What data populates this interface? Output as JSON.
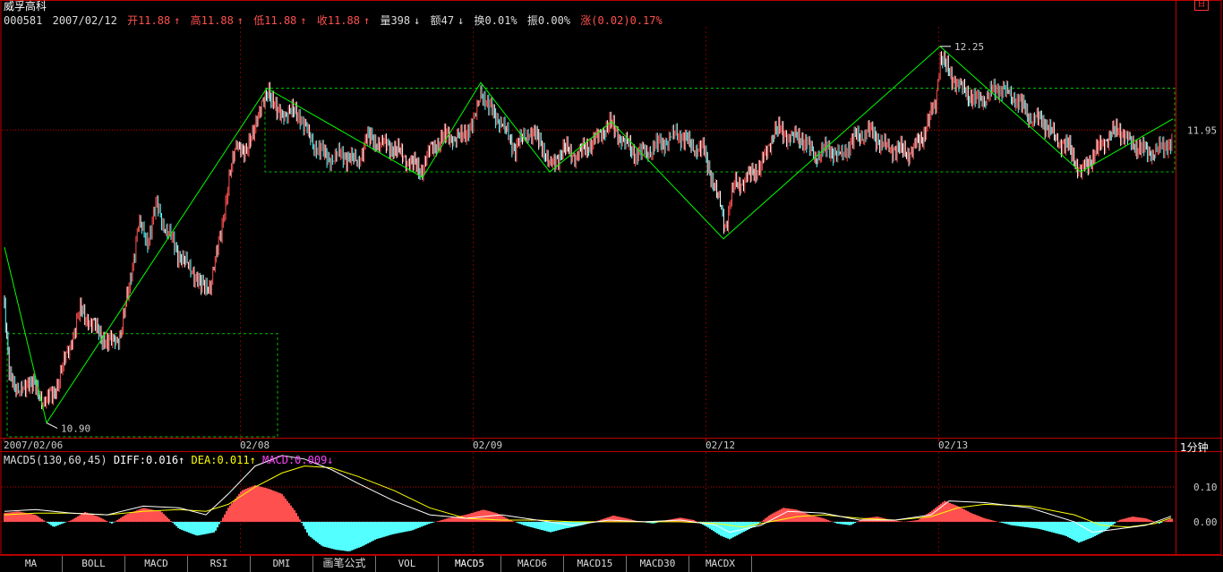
{
  "header": {
    "name": "威孚高科",
    "code": "000581",
    "date": "2007/02/12",
    "open_label": "开11.88",
    "high_label": "高11.88",
    "low_label": "低11.88",
    "close_label": "收11.88",
    "vol_label": "量398",
    "amt_label": "额47",
    "turnover_label": "换0.01%",
    "amplitude_label": "振0.00%",
    "change_label": "涨(0.02)0.17%"
  },
  "period_label": "1分钟",
  "top_button": "日",
  "macd_header": {
    "name": "MACD5(130,60,45)",
    "diff": "DIFF:0.016",
    "dea": "DEA:0.011",
    "macd": "MACD:0.009"
  },
  "tabs": [
    "MA",
    "BOLL",
    "MACD",
    "RSI",
    "DMI",
    "画笔公式",
    "VOL",
    "MACD5",
    "MACD6",
    "MACD15",
    "MACD30",
    "MACDX"
  ],
  "selected_tab": "MACD5",
  "colors": {
    "background": "#000000",
    "frame": "#c00000",
    "up": "#ff5050",
    "down": "#54ffff",
    "zigzag": "#00ff00",
    "box": "#00c000",
    "diff": "#ffffff",
    "dea": "#ffff00",
    "hline": "#c00000"
  },
  "chart_data": {
    "type": "line",
    "title": "威孚高科 1分钟",
    "x_ticks": [
      "2007/02/06",
      "02/08",
      "02/09",
      "02/12",
      "02/13"
    ],
    "price_labels": [
      "11.95"
    ],
    "ylim": [
      10.85,
      12.32
    ],
    "price_series": [
      [
        0,
        11.5
      ],
      [
        10,
        11.1
      ],
      [
        20,
        11.0
      ],
      [
        30,
        11.05
      ],
      [
        40,
        11.02
      ],
      [
        50,
        10.98
      ],
      [
        60,
        11.0
      ],
      [
        75,
        11.15
      ],
      [
        90,
        11.3
      ],
      [
        105,
        11.25
      ],
      [
        120,
        11.18
      ],
      [
        135,
        11.22
      ],
      [
        145,
        11.4
      ],
      [
        155,
        11.62
      ],
      [
        165,
        11.55
      ],
      [
        175,
        11.68
      ],
      [
        185,
        11.6
      ],
      [
        200,
        11.5
      ],
      [
        215,
        11.45
      ],
      [
        225,
        11.38
      ],
      [
        235,
        11.4
      ],
      [
        245,
        11.55
      ],
      [
        255,
        11.75
      ],
      [
        265,
        11.92
      ],
      [
        275,
        11.85
      ],
      [
        285,
        11.98
      ],
      [
        295,
        12.05
      ],
      [
        300,
        12.1
      ],
      [
        310,
        12.0
      ],
      [
        320,
        12.02
      ],
      [
        335,
        12.0
      ],
      [
        350,
        11.9
      ],
      [
        365,
        11.85
      ],
      [
        380,
        11.86
      ],
      [
        400,
        11.84
      ],
      [
        410,
        11.92
      ],
      [
        430,
        11.9
      ],
      [
        450,
        11.86
      ],
      [
        470,
        11.8
      ],
      [
        480,
        11.88
      ],
      [
        500,
        11.93
      ],
      [
        515,
        11.92
      ],
      [
        530,
        11.98
      ],
      [
        537,
        12.1
      ],
      [
        545,
        12.03
      ],
      [
        560,
        11.98
      ],
      [
        575,
        11.88
      ],
      [
        590,
        11.95
      ],
      [
        605,
        11.9
      ],
      [
        615,
        11.82
      ],
      [
        630,
        11.88
      ],
      [
        645,
        11.86
      ],
      [
        660,
        11.9
      ],
      [
        680,
        11.97
      ],
      [
        695,
        11.92
      ],
      [
        710,
        11.86
      ],
      [
        725,
        11.88
      ],
      [
        740,
        11.9
      ],
      [
        755,
        11.94
      ],
      [
        770,
        11.9
      ],
      [
        785,
        11.88
      ],
      [
        795,
        11.78
      ],
      [
        805,
        11.68
      ],
      [
        810,
        11.6
      ],
      [
        820,
        11.75
      ],
      [
        835,
        11.78
      ],
      [
        850,
        11.82
      ],
      [
        865,
        11.95
      ],
      [
        880,
        11.93
      ],
      [
        895,
        11.92
      ],
      [
        910,
        11.86
      ],
      [
        925,
        11.88
      ],
      [
        940,
        11.86
      ],
      [
        955,
        11.92
      ],
      [
        970,
        11.95
      ],
      [
        985,
        11.9
      ],
      [
        1000,
        11.88
      ],
      [
        1015,
        11.87
      ],
      [
        1030,
        11.92
      ],
      [
        1045,
        12.05
      ],
      [
        1050,
        12.22
      ],
      [
        1060,
        12.15
      ],
      [
        1075,
        12.1
      ],
      [
        1090,
        12.05
      ],
      [
        1105,
        12.08
      ],
      [
        1120,
        12.1
      ],
      [
        1135,
        12.06
      ],
      [
        1150,
        12.0
      ],
      [
        1165,
        11.98
      ],
      [
        1180,
        11.92
      ],
      [
        1195,
        11.88
      ],
      [
        1207,
        11.8
      ],
      [
        1220,
        11.85
      ],
      [
        1235,
        11.92
      ],
      [
        1250,
        11.95
      ],
      [
        1265,
        11.9
      ],
      [
        1280,
        11.87
      ],
      [
        1295,
        11.88
      ],
      [
        1305,
        11.9
      ]
    ],
    "zigzag": [
      {
        "x": 5,
        "price": 11.53
      },
      {
        "x": 52,
        "price": 10.9,
        "label": "10.90"
      },
      {
        "x": 298,
        "price": 12.1
      },
      {
        "x": 472,
        "price": 11.78
      },
      {
        "x": 537,
        "price": 12.12
      },
      {
        "x": 614,
        "price": 11.8
      },
      {
        "x": 683,
        "price": 11.98
      },
      {
        "x": 808,
        "price": 11.56
      },
      {
        "x": 1050,
        "price": 12.25,
        "label": "12.25"
      },
      {
        "x": 1207,
        "price": 11.8
      },
      {
        "x": 1310,
        "price": 11.99
      }
    ],
    "boxes": [
      {
        "x0": 296,
        "x1": 1312,
        "top": 12.1,
        "bottom": 11.8
      },
      {
        "x0": 8,
        "x1": 310,
        "top": 11.22,
        "bottom": 10.85
      }
    ],
    "macd_ylim": [
      -0.09,
      0.2
    ],
    "macd_labels": [
      "0.10",
      "0.00"
    ],
    "macd_hist": [
      [
        5,
        0.025
      ],
      [
        20,
        0.03
      ],
      [
        40,
        0.02
      ],
      [
        60,
        -0.015
      ],
      [
        80,
        0.005
      ],
      [
        95,
        0.028
      ],
      [
        110,
        0.015
      ],
      [
        125,
        -0.005
      ],
      [
        140,
        0.02
      ],
      [
        160,
        0.04
      ],
      [
        180,
        0.03
      ],
      [
        200,
        -0.02
      ],
      [
        220,
        -0.04
      ],
      [
        240,
        -0.03
      ],
      [
        255,
        0.04
      ],
      [
        270,
        0.09
      ],
      [
        285,
        0.105
      ],
      [
        300,
        0.095
      ],
      [
        315,
        0.08
      ],
      [
        330,
        0.03
      ],
      [
        345,
        -0.04
      ],
      [
        360,
        -0.07
      ],
      [
        375,
        -0.08
      ],
      [
        390,
        -0.085
      ],
      [
        405,
        -0.07
      ],
      [
        420,
        -0.05
      ],
      [
        440,
        -0.035
      ],
      [
        460,
        -0.025
      ],
      [
        480,
        -0.005
      ],
      [
        500,
        0.01
      ],
      [
        520,
        0.02
      ],
      [
        540,
        0.035
      ],
      [
        555,
        0.025
      ],
      [
        570,
        0.005
      ],
      [
        585,
        -0.01
      ],
      [
        600,
        -0.02
      ],
      [
        615,
        -0.03
      ],
      [
        630,
        -0.02
      ],
      [
        650,
        -0.01
      ],
      [
        670,
        0.005
      ],
      [
        685,
        0.018
      ],
      [
        700,
        0.01
      ],
      [
        715,
        0.0
      ],
      [
        730,
        -0.005
      ],
      [
        745,
        0.005
      ],
      [
        760,
        0.012
      ],
      [
        775,
        0.005
      ],
      [
        790,
        -0.015
      ],
      [
        805,
        -0.04
      ],
      [
        815,
        -0.05
      ],
      [
        830,
        -0.03
      ],
      [
        845,
        -0.01
      ],
      [
        860,
        0.02
      ],
      [
        875,
        0.04
      ],
      [
        890,
        0.035
      ],
      [
        905,
        0.02
      ],
      [
        920,
        0.01
      ],
      [
        935,
        -0.005
      ],
      [
        950,
        -0.01
      ],
      [
        965,
        0.01
      ],
      [
        980,
        0.015
      ],
      [
        995,
        0.005
      ],
      [
        1010,
        0.0
      ],
      [
        1025,
        0.005
      ],
      [
        1040,
        0.03
      ],
      [
        1055,
        0.06
      ],
      [
        1070,
        0.045
      ],
      [
        1085,
        0.025
      ],
      [
        1100,
        0.01
      ],
      [
        1115,
        0.0
      ],
      [
        1130,
        -0.01
      ],
      [
        1145,
        -0.015
      ],
      [
        1160,
        -0.02
      ],
      [
        1175,
        -0.03
      ],
      [
        1190,
        -0.04
      ],
      [
        1205,
        -0.06
      ],
      [
        1220,
        -0.045
      ],
      [
        1235,
        -0.025
      ],
      [
        1250,
        0.005
      ],
      [
        1265,
        0.015
      ],
      [
        1280,
        0.01
      ],
      [
        1295,
        -0.005
      ],
      [
        1308,
        0.009
      ]
    ],
    "macd_diff": [
      [
        5,
        0.03
      ],
      [
        40,
        0.035
      ],
      [
        80,
        0.025
      ],
      [
        120,
        0.02
      ],
      [
        160,
        0.045
      ],
      [
        200,
        0.04
      ],
      [
        230,
        0.02
      ],
      [
        255,
        0.08
      ],
      [
        285,
        0.16
      ],
      [
        315,
        0.19
      ],
      [
        340,
        0.18
      ],
      [
        370,
        0.15
      ],
      [
        400,
        0.11
      ],
      [
        440,
        0.06
      ],
      [
        480,
        0.02
      ],
      [
        520,
        0.01
      ],
      [
        560,
        0.02
      ],
      [
        600,
        0.005
      ],
      [
        640,
        -0.01
      ],
      [
        680,
        0.005
      ],
      [
        720,
        0.0
      ],
      [
        760,
        0.005
      ],
      [
        800,
        -0.01
      ],
      [
        815,
        -0.03
      ],
      [
        850,
        -0.01
      ],
      [
        880,
        0.03
      ],
      [
        920,
        0.025
      ],
      [
        960,
        0.005
      ],
      [
        1000,
        0.005
      ],
      [
        1040,
        0.02
      ],
      [
        1060,
        0.06
      ],
      [
        1100,
        0.055
      ],
      [
        1150,
        0.04
      ],
      [
        1200,
        0.0
      ],
      [
        1220,
        -0.03
      ],
      [
        1250,
        -0.02
      ],
      [
        1280,
        -0.01
      ],
      [
        1308,
        0.016
      ]
    ],
    "macd_dea": [
      [
        5,
        0.02
      ],
      [
        40,
        0.025
      ],
      [
        80,
        0.025
      ],
      [
        120,
        0.02
      ],
      [
        160,
        0.03
      ],
      [
        200,
        0.035
      ],
      [
        230,
        0.03
      ],
      [
        255,
        0.05
      ],
      [
        285,
        0.1
      ],
      [
        315,
        0.14
      ],
      [
        340,
        0.16
      ],
      [
        370,
        0.155
      ],
      [
        400,
        0.13
      ],
      [
        440,
        0.09
      ],
      [
        480,
        0.04
      ],
      [
        520,
        0.01
      ],
      [
        560,
        0.005
      ],
      [
        600,
        0.005
      ],
      [
        640,
        0.0
      ],
      [
        680,
        0.0
      ],
      [
        720,
        0.0
      ],
      [
        760,
        0.0
      ],
      [
        800,
        -0.005
      ],
      [
        830,
        -0.015
      ],
      [
        860,
        0.0
      ],
      [
        890,
        0.015
      ],
      [
        920,
        0.02
      ],
      [
        960,
        0.01
      ],
      [
        1000,
        0.005
      ],
      [
        1040,
        0.015
      ],
      [
        1070,
        0.04
      ],
      [
        1100,
        0.05
      ],
      [
        1150,
        0.045
      ],
      [
        1200,
        0.02
      ],
      [
        1230,
        -0.01
      ],
      [
        1260,
        -0.015
      ],
      [
        1290,
        -0.005
      ],
      [
        1308,
        0.011
      ]
    ]
  }
}
